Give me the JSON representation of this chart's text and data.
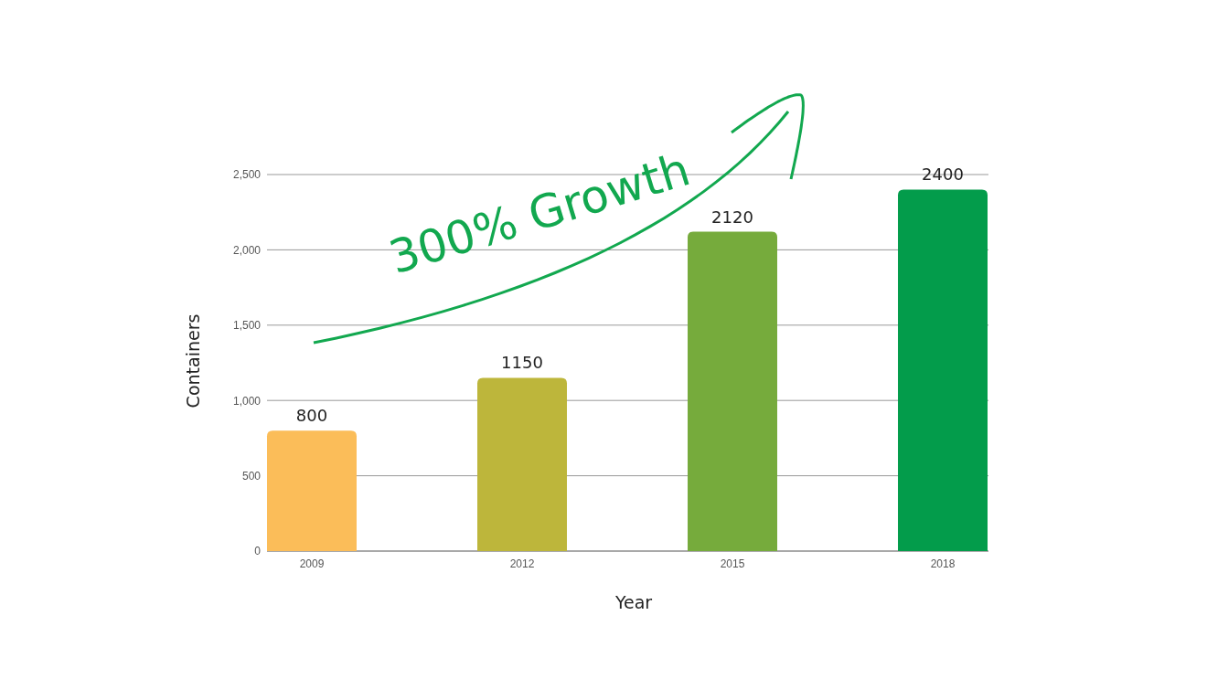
{
  "chart_data": {
    "type": "bar",
    "xlabel": "Year",
    "ylabel": "Containers",
    "categories": [
      "2009",
      "2012",
      "2015",
      "2018"
    ],
    "values": [
      800,
      1150,
      2120,
      2400
    ],
    "colors": [
      "#fbbd59",
      "#bdb63b",
      "#76ab3c",
      "#039c4b"
    ],
    "ylim": [
      0,
      2500
    ],
    "yticks": [
      0,
      500,
      {
        "value": 1000,
        "label": "1,000"
      },
      {
        "value": 1500,
        "label": "1,500"
      },
      {
        "value": 2000,
        "label": "2,000"
      },
      {
        "value": 2500,
        "label": "2,500"
      }
    ],
    "grid": "y",
    "data_labels": true,
    "annotations": [
      "300% Growth"
    ]
  }
}
